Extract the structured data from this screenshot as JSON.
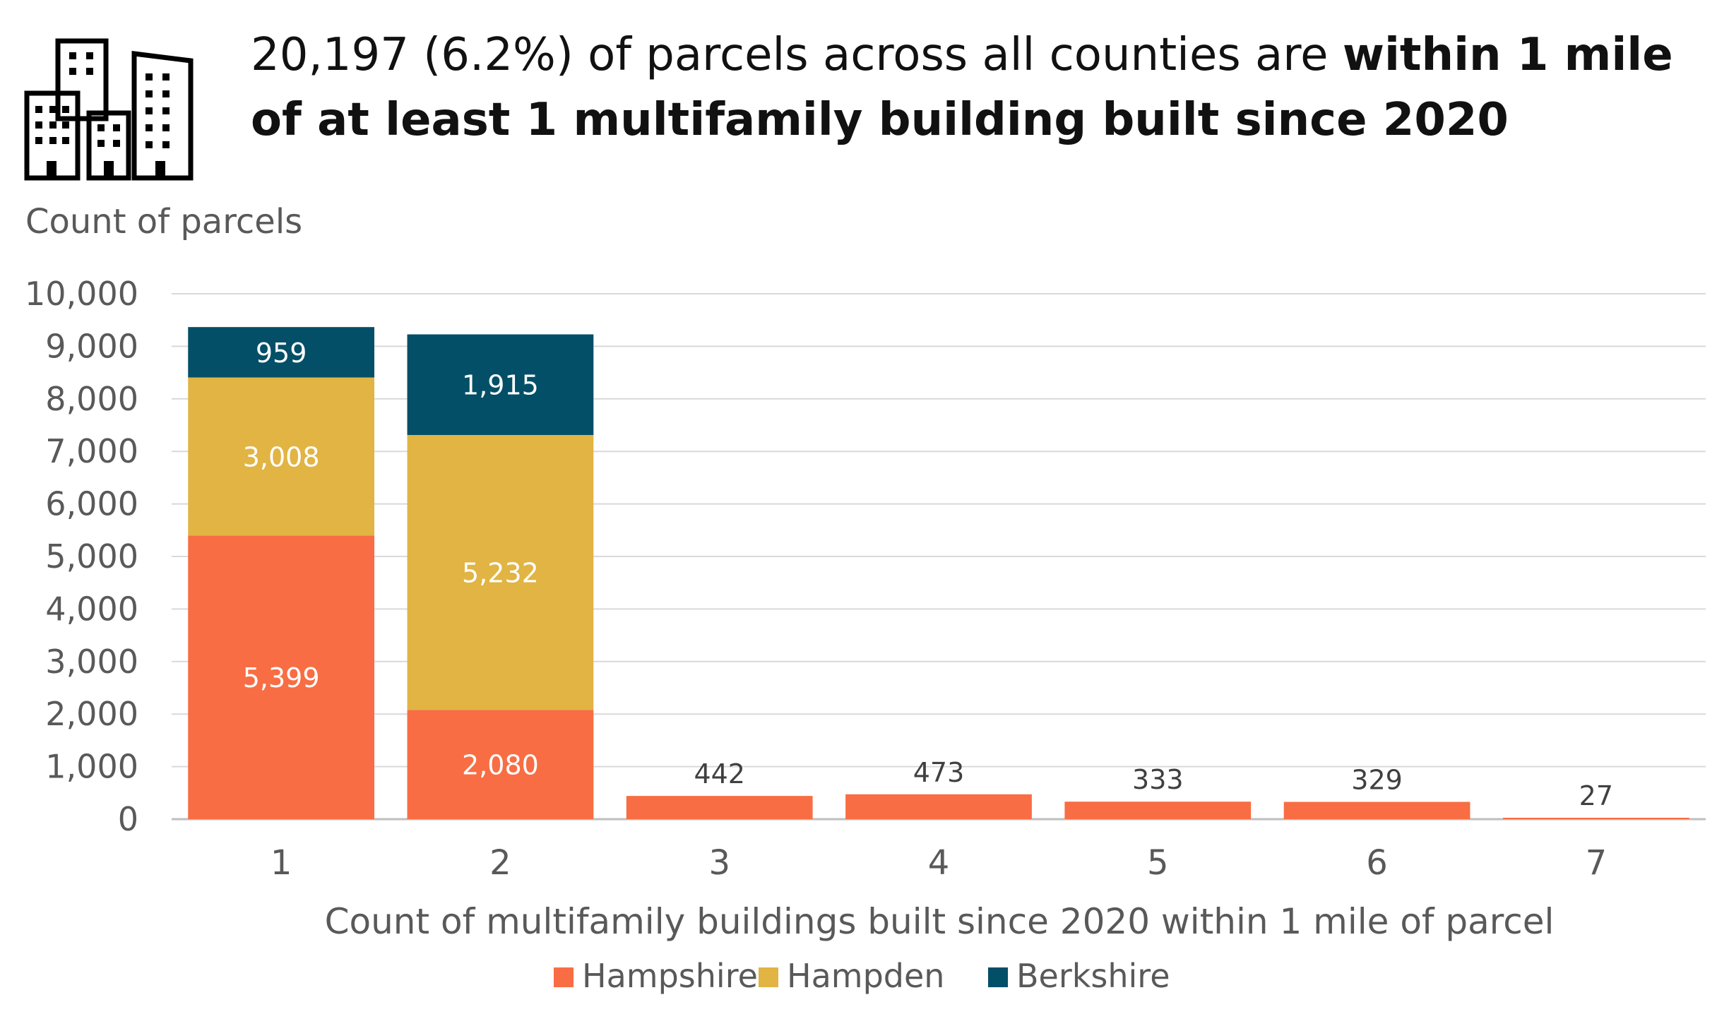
{
  "headline": {
    "normal": "20,197 (6.2%) of parcels across all counties are ",
    "bold": "within 1 mile of at least 1 multifamily building built since 2020"
  },
  "icon": "buildings-icon",
  "colors": {
    "Hampshire": "#F86D43",
    "Hampden": "#E1B443",
    "Berkshire": "#034F67",
    "grid": "#D9D9D9",
    "axis_text": "#595959"
  },
  "chart_data": {
    "type": "bar",
    "stacked": true,
    "categories": [
      "1",
      "2",
      "3",
      "4",
      "5",
      "6",
      "7"
    ],
    "series": [
      {
        "name": "Hampshire",
        "values": [
          5399,
          2080,
          442,
          473,
          333,
          329,
          27
        ]
      },
      {
        "name": "Hampden",
        "values": [
          3008,
          5232,
          0,
          0,
          0,
          0,
          0
        ]
      },
      {
        "name": "Berkshire",
        "values": [
          959,
          1915,
          0,
          0,
          0,
          0,
          0
        ]
      }
    ],
    "data_labels": [
      [
        "5,399",
        "2,080",
        "442",
        "473",
        "333",
        "329",
        "27"
      ],
      [
        "3,008",
        "5,232",
        "",
        "",
        "",
        "",
        ""
      ],
      [
        "959",
        "1,915",
        "",
        "",
        "",
        "",
        ""
      ]
    ],
    "ylabel": "Count of parcels",
    "xlabel": "Count of multifamily buildings built since 2020 within 1 mile of parcel",
    "ylim": [
      0,
      10000
    ],
    "yticks": [
      0,
      1000,
      2000,
      3000,
      4000,
      5000,
      6000,
      7000,
      8000,
      9000,
      10000
    ],
    "ytick_labels": [
      "0",
      "1,000",
      "2,000",
      "3,000",
      "4,000",
      "5,000",
      "6,000",
      "7,000",
      "8,000",
      "9,000",
      "10,000"
    ],
    "grid": true,
    "legend": "bottom-center"
  }
}
